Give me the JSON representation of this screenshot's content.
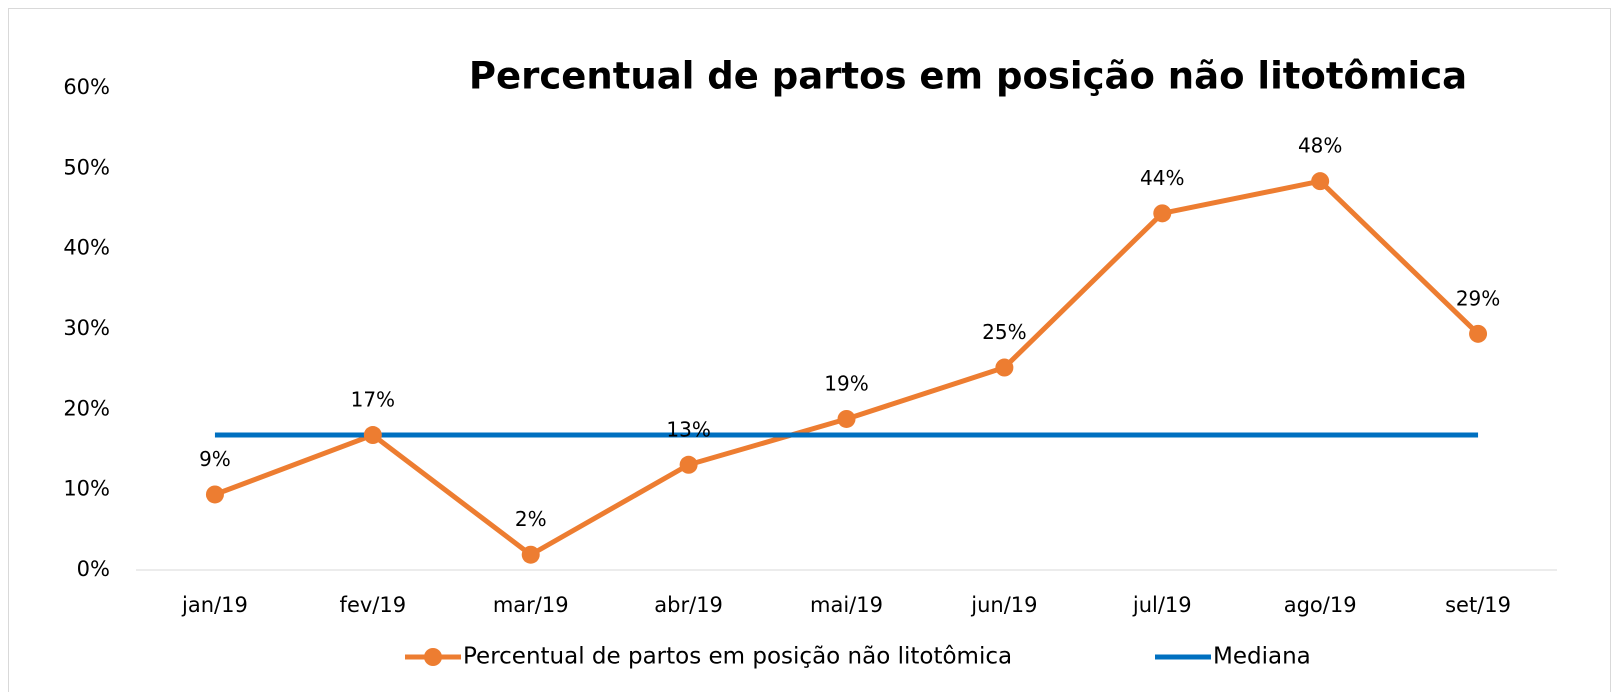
{
  "chart_data": {
    "type": "line",
    "title": "Percentual de partos em posição não litotômica",
    "categories": [
      "jan/19",
      "fev/19",
      "mar/19",
      "abr/19",
      "mai/19",
      "jun/19",
      "jul/19",
      "ago/19",
      "set/19"
    ],
    "series": [
      {
        "name": "Percentual de partos em posição não litotômica",
        "color": "#ED7D31",
        "marker": "circle",
        "values": [
          9.4,
          16.8,
          1.9,
          13.1,
          18.8,
          25.2,
          44.4,
          48.4,
          29.4
        ],
        "value_labels": [
          "9%",
          "17%",
          "2%",
          "13%",
          "19%",
          "25%",
          "44%",
          "48%",
          "29%"
        ]
      },
      {
        "name": "Mediana",
        "color": "#0070C0",
        "values": [
          16.8,
          16.8,
          16.8,
          16.8,
          16.8,
          16.8,
          16.8,
          16.8,
          16.8
        ]
      }
    ],
    "ylim": [
      0,
      60
    ],
    "yticks": [
      {
        "value": 0,
        "label": "0%"
      },
      {
        "value": 10,
        "label": "10%"
      },
      {
        "value": 20,
        "label": "20%"
      },
      {
        "value": 30,
        "label": "30%"
      },
      {
        "value": 40,
        "label": "40%"
      },
      {
        "value": 50,
        "label": "50%"
      },
      {
        "value": 60,
        "label": "60%"
      }
    ],
    "legend": "bottom"
  }
}
